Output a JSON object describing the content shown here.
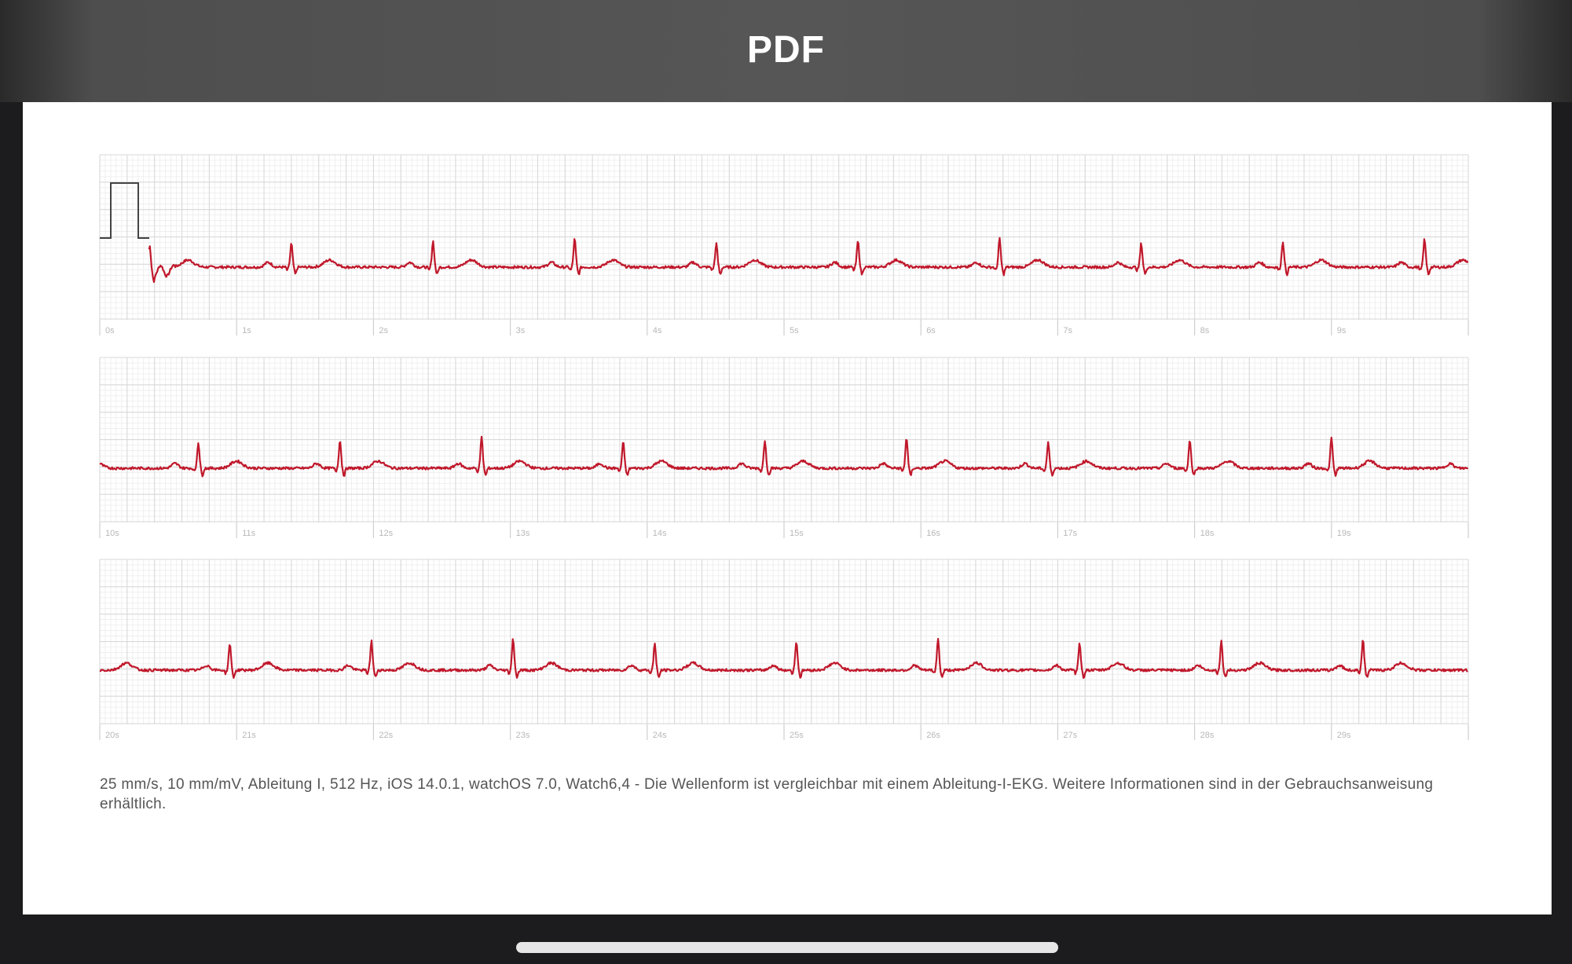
{
  "header": {
    "title": "PDF"
  },
  "ecg": {
    "strips": [
      {
        "time_labels": [
          "0s",
          "1s",
          "2s",
          "3s",
          "4s",
          "5s",
          "6s",
          "7s",
          "8s",
          "9s"
        ]
      },
      {
        "time_labels": [
          "10s",
          "11s",
          "12s",
          "13s",
          "14s",
          "15s",
          "16s",
          "17s",
          "18s",
          "19s"
        ]
      },
      {
        "time_labels": [
          "20s",
          "21s",
          "22s",
          "23s",
          "24s",
          "25s",
          "26s",
          "27s",
          "28s",
          "29s"
        ]
      }
    ],
    "waveform_color": "#c0182b",
    "grid_color": "#d9d9d9"
  },
  "caption": {
    "text": "25 mm/s, 10 mm/mV, Ableitung I, 512 Hz, iOS 14.0.1, watchOS 7.0, Watch6,4 - Die Wellenform ist vergleichbar mit einem Ableitung-I-EKG. Weitere Informationen sind in der Gebrauchsanweisung erhältlich."
  }
}
